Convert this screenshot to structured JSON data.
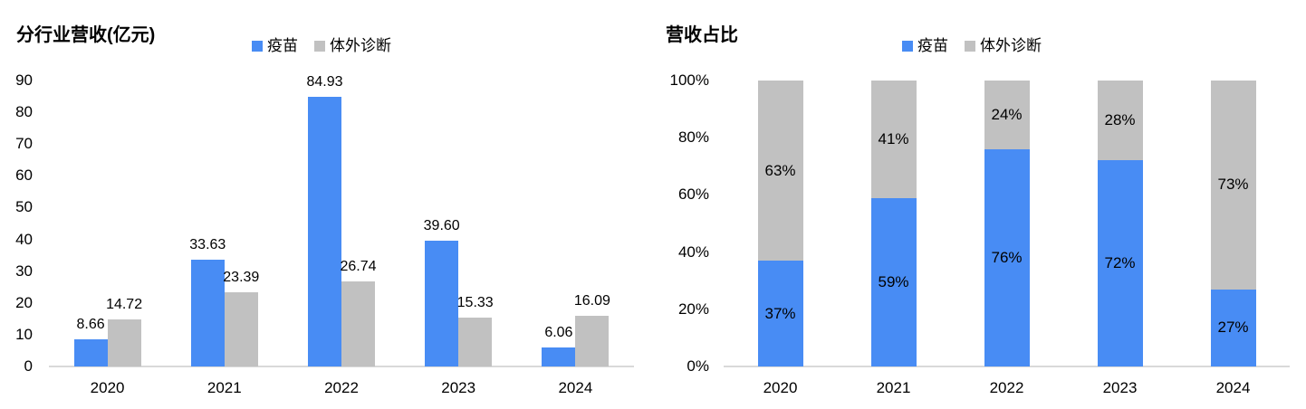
{
  "page": {
    "background": "#ffffff"
  },
  "colors": {
    "vaccine_blue": "#488cf4",
    "ivd_gray": "#c1c1c1",
    "axis_line": "#d9d9d9",
    "text": "#000000"
  },
  "chart_data": [
    {
      "type": "bar",
      "title": "分行业营收(亿元)",
      "categories": [
        "2020",
        "2021",
        "2022",
        "2023",
        "2024"
      ],
      "series": [
        {
          "key": "vaccine",
          "name": "疫苗",
          "color": "#488cf4",
          "values": [
            8.66,
            33.63,
            84.93,
            39.6,
            6.06
          ],
          "data_labels": [
            "8.66",
            "33.63",
            "84.93",
            "39.60",
            "6.06"
          ]
        },
        {
          "key": "ivd",
          "name": "体外诊断",
          "color": "#c1c1c1",
          "values": [
            14.72,
            23.39,
            26.74,
            15.33,
            16.09
          ],
          "data_labels": [
            "14.72",
            "23.39",
            "26.74",
            "15.33",
            "16.09"
          ]
        }
      ],
      "xlabel": "",
      "ylabel": "",
      "ylim": [
        0,
        90
      ],
      "yticks": [
        0,
        10,
        20,
        30,
        40,
        50,
        60,
        70,
        80,
        90
      ],
      "grid": false,
      "legend_position": "top"
    },
    {
      "type": "stacked-bar",
      "title": "营收占比",
      "categories": [
        "2020",
        "2021",
        "2022",
        "2023",
        "2024"
      ],
      "series": [
        {
          "key": "vaccine",
          "name": "疫苗",
          "color": "#488cf4",
          "values": [
            37,
            59,
            76,
            72,
            27
          ],
          "data_labels": [
            "37%",
            "59%",
            "76%",
            "72%",
            "27%"
          ]
        },
        {
          "key": "ivd",
          "name": "体外诊断",
          "color": "#c1c1c1",
          "values": [
            63,
            41,
            24,
            28,
            73
          ],
          "data_labels": [
            "63%",
            "41%",
            "24%",
            "28%",
            "73%"
          ]
        }
      ],
      "xlabel": "",
      "ylabel": "",
      "ylim": [
        0,
        100
      ],
      "yticks": [
        "0%",
        "20%",
        "40%",
        "60%",
        "80%",
        "100%"
      ],
      "grid": false,
      "legend_position": "top"
    }
  ]
}
